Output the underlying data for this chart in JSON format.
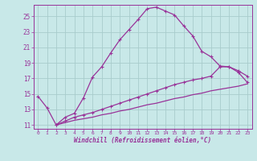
{
  "xlabel": "Windchill (Refroidissement éolien,°C)",
  "background_color": "#c8e8e8",
  "grid_color": "#a8cccc",
  "line_color": "#993399",
  "xlim": [
    -0.5,
    23.5
  ],
  "ylim": [
    10.5,
    26.5
  ],
  "xticks": [
    0,
    1,
    2,
    3,
    4,
    5,
    6,
    7,
    8,
    9,
    10,
    11,
    12,
    13,
    14,
    15,
    16,
    17,
    18,
    19,
    20,
    21,
    22,
    23
  ],
  "yticks": [
    11,
    13,
    15,
    17,
    19,
    21,
    23,
    25
  ],
  "line1_x": [
    0,
    1,
    2,
    3,
    4,
    5,
    6,
    7,
    8,
    9,
    10,
    11,
    12,
    13,
    14,
    15,
    16,
    17,
    18,
    19,
    20,
    21,
    22,
    23
  ],
  "line1_y": [
    14.7,
    13.2,
    11.0,
    12.0,
    12.5,
    14.5,
    17.2,
    18.5,
    20.3,
    22.0,
    23.3,
    24.6,
    26.0,
    26.2,
    25.7,
    25.2,
    23.8,
    22.5,
    20.5,
    19.8,
    18.6,
    18.5,
    17.8,
    16.5
  ],
  "line2_x": [
    2,
    3,
    4,
    5,
    6,
    7,
    8,
    9,
    10,
    11,
    12,
    13,
    14,
    15,
    16,
    17,
    18,
    19,
    20,
    21,
    22,
    23
  ],
  "line2_y": [
    11.0,
    11.5,
    12.0,
    12.3,
    12.6,
    13.0,
    13.4,
    13.8,
    14.2,
    14.6,
    15.0,
    15.4,
    15.8,
    16.2,
    16.5,
    16.8,
    17.0,
    17.3,
    18.5,
    18.5,
    18.0,
    17.3
  ],
  "line3_x": [
    2,
    3,
    4,
    5,
    6,
    7,
    8,
    9,
    10,
    11,
    12,
    13,
    14,
    15,
    16,
    17,
    18,
    19,
    20,
    21,
    22,
    23
  ],
  "line3_y": [
    11.0,
    11.3,
    11.6,
    11.8,
    12.0,
    12.3,
    12.5,
    12.8,
    13.0,
    13.3,
    13.6,
    13.8,
    14.1,
    14.4,
    14.6,
    14.9,
    15.1,
    15.4,
    15.6,
    15.8,
    16.0,
    16.3
  ],
  "marker_style": "+"
}
